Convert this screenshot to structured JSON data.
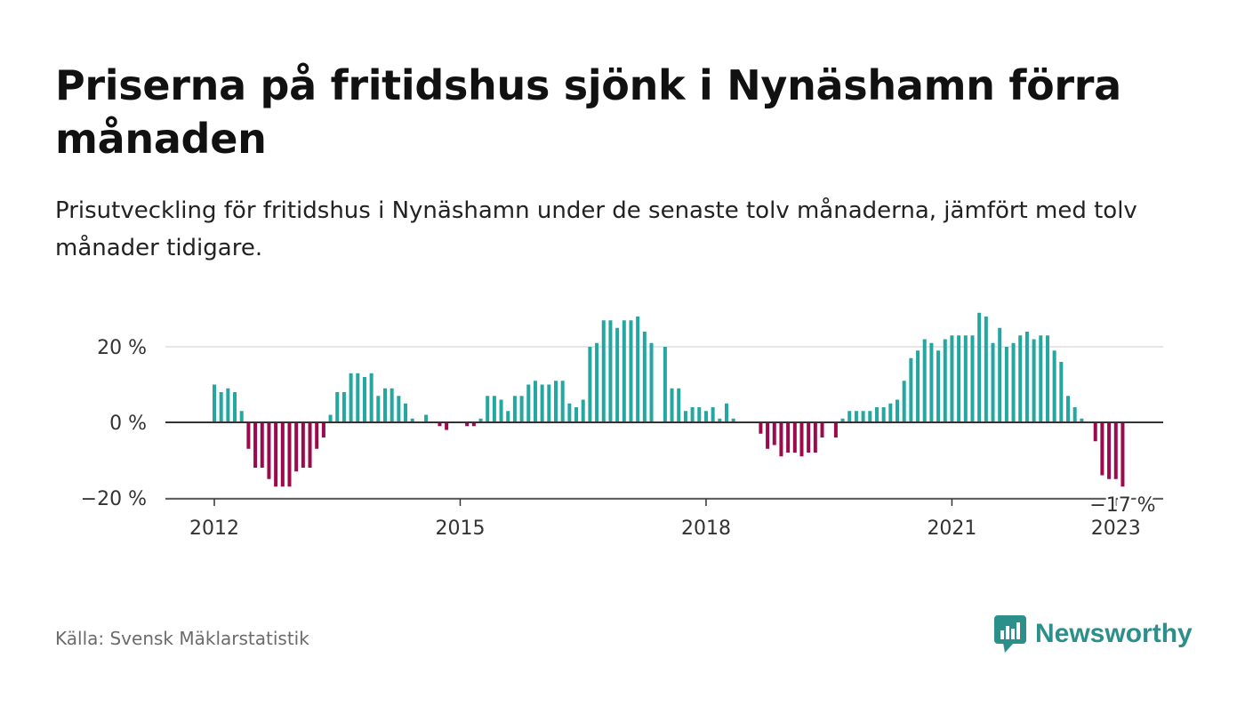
{
  "header": {
    "title": "Priserna på fritidshus sjönk i Nynäshamn förra månaden",
    "subtitle": "Prisutveckling för fritidshus i Nynäshamn under de senaste tolv månaderna, jämfört med tolv månader tidigare."
  },
  "footer": {
    "source": "Källa: Svensk Mäklarstatistik",
    "brand": "Newsworthy",
    "brand_icon": "bar-chart-speech-bubble-icon"
  },
  "colors": {
    "positive": "#23a7a0",
    "negative": "#9b0a4a",
    "grid": "#dddddd",
    "zero_line": "#333333",
    "brand": "#2c8f8a"
  },
  "chart_data": {
    "type": "bar",
    "x_unit": "month",
    "x_start": "2012-01",
    "ylim": [
      -20,
      30
    ],
    "yticks": [
      {
        "value": 20,
        "label": "20 %"
      },
      {
        "value": 0,
        "label": "0 %"
      },
      {
        "value": -20,
        "label": "−20 %"
      }
    ],
    "xticks": [
      "2012",
      "2015",
      "2018",
      "2021",
      "2023"
    ],
    "annotation": {
      "label": "−17 %",
      "value": -17
    },
    "grid": true,
    "values": [
      10,
      8,
      9,
      8,
      3,
      -7,
      -12,
      -12,
      -15,
      -17,
      -17,
      -17,
      -13,
      -12,
      -12,
      -7,
      -4,
      2,
      8,
      8,
      13,
      13,
      12,
      13,
      7,
      9,
      9,
      7,
      5,
      1,
      0,
      2,
      0,
      -1,
      -2,
      0,
      0,
      -1,
      -1,
      1,
      7,
      7,
      6,
      3,
      7,
      7,
      10,
      11,
      10,
      10,
      11,
      11,
      5,
      4,
      6,
      20,
      21,
      27,
      27,
      25,
      27,
      27,
      28,
      24,
      21,
      0,
      20,
      9,
      9,
      3,
      4,
      4,
      3,
      4,
      1,
      5,
      1,
      0,
      0,
      0,
      -3,
      -7,
      -6,
      -9,
      -8,
      -8,
      -9,
      -8,
      -8,
      -4,
      0,
      -4,
      1,
      3,
      3,
      3,
      3,
      4,
      4,
      5,
      6,
      11,
      17,
      19,
      22,
      21,
      19,
      22,
      23,
      23,
      23,
      23,
      29,
      28,
      21,
      25,
      20,
      21,
      23,
      24,
      22,
      23,
      23,
      19,
      16,
      7,
      4,
      1,
      0,
      -5,
      -14,
      -15,
      -15,
      -17
    ]
  }
}
